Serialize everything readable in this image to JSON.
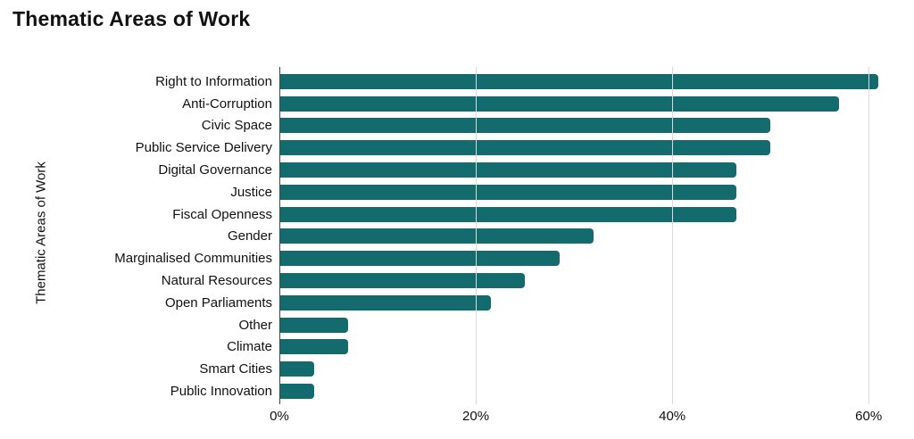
{
  "page": {
    "title": "Thematic Areas of Work"
  },
  "chart_data": {
    "type": "bar",
    "orientation": "horizontal",
    "title": "Thematic Areas of Work",
    "xlabel": "",
    "ylabel": "Thematic Areas of Work",
    "categories": [
      "Right to Information",
      "Anti-Corruption",
      "Civic Space",
      "Public Service Delivery",
      "Digital Governance",
      "Justice",
      "Fiscal Openness",
      "Gender",
      "Marginalised Communities",
      "Natural Resources",
      "Open Parliaments",
      "Other",
      "Climate",
      "Smart Cities",
      "Public Innovation"
    ],
    "values": [
      61,
      57,
      50,
      50,
      46.5,
      46.5,
      46.5,
      32,
      28.5,
      25,
      21.5,
      7,
      7,
      3.5,
      3.5
    ],
    "value_unit": "%",
    "xlim": [
      0,
      63.8
    ],
    "x_ticks": [
      {
        "value": 0,
        "label": "0%"
      },
      {
        "value": 20,
        "label": "20%"
      },
      {
        "value": 40,
        "label": "40%"
      },
      {
        "value": 60,
        "label": "60%"
      }
    ],
    "grid": true,
    "legend": false,
    "colors": {
      "bar": "#136B6D",
      "gridline": "#D9D9D9",
      "axis_line": "#444444",
      "text": "#111111"
    }
  }
}
